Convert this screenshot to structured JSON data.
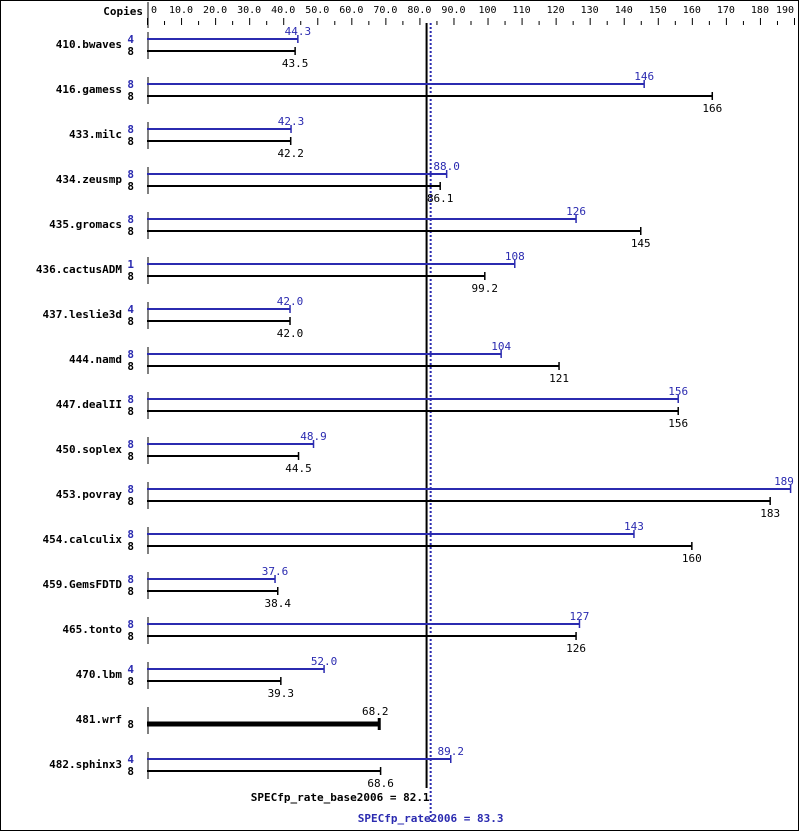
{
  "chart_data": {
    "type": "bar",
    "orientation": "horizontal",
    "axis_label": "Copies",
    "xlim": [
      0,
      190
    ],
    "ticks": [
      "0",
      "10.0",
      "20.0",
      "30.0",
      "40.0",
      "50.0",
      "60.0",
      "70.0",
      "80.0",
      "90.0",
      "100",
      "110",
      "120",
      "130",
      "140",
      "150",
      "160",
      "170",
      "180",
      "190"
    ],
    "tick_values": [
      0,
      10,
      20,
      30,
      40,
      50,
      60,
      70,
      80,
      90,
      100,
      110,
      120,
      130,
      140,
      150,
      160,
      170,
      180,
      190
    ],
    "colors": {
      "peak": "#2b2bb0",
      "base": "#000000"
    },
    "benchmarks": [
      {
        "name": "410.bwaves",
        "peak_copies": "4",
        "peak": 44.3,
        "peak_label": "44.3",
        "base_copies": "8",
        "base": 43.5,
        "base_label": "43.5"
      },
      {
        "name": "416.gamess",
        "peak_copies": "8",
        "peak": 146,
        "peak_label": "146",
        "base_copies": "8",
        "base": 166,
        "base_label": "166"
      },
      {
        "name": "433.milc",
        "peak_copies": "8",
        "peak": 42.3,
        "peak_label": "42.3",
        "base_copies": "8",
        "base": 42.2,
        "base_label": "42.2"
      },
      {
        "name": "434.zeusmp",
        "peak_copies": "8",
        "peak": 88.0,
        "peak_label": "88.0",
        "base_copies": "8",
        "base": 86.1,
        "base_label": "86.1"
      },
      {
        "name": "435.gromacs",
        "peak_copies": "8",
        "peak": 126,
        "peak_label": "126",
        "base_copies": "8",
        "base": 145,
        "base_label": "145"
      },
      {
        "name": "436.cactusADM",
        "peak_copies": "1",
        "peak": 108,
        "peak_label": "108",
        "base_copies": "8",
        "base": 99.2,
        "base_label": "99.2"
      },
      {
        "name": "437.leslie3d",
        "peak_copies": "4",
        "peak": 42.0,
        "peak_label": "42.0",
        "base_copies": "8",
        "base": 42.0,
        "base_label": "42.0"
      },
      {
        "name": "444.namd",
        "peak_copies": "8",
        "peak": 104,
        "peak_label": "104",
        "base_copies": "8",
        "base": 121,
        "base_label": "121"
      },
      {
        "name": "447.dealII",
        "peak_copies": "8",
        "peak": 156,
        "peak_label": "156",
        "base_copies": "8",
        "base": 156,
        "base_label": "156"
      },
      {
        "name": "450.soplex",
        "peak_copies": "8",
        "peak": 48.9,
        "peak_label": "48.9",
        "base_copies": "8",
        "base": 44.5,
        "base_label": "44.5"
      },
      {
        "name": "453.povray",
        "peak_copies": "8",
        "peak": 189,
        "peak_label": "189",
        "base_copies": "8",
        "base": 183,
        "base_label": "183"
      },
      {
        "name": "454.calculix",
        "peak_copies": "8",
        "peak": 143,
        "peak_label": "143",
        "base_copies": "8",
        "base": 160,
        "base_label": "160"
      },
      {
        "name": "459.GemsFDTD",
        "peak_copies": "8",
        "peak": 37.6,
        "peak_label": "37.6",
        "base_copies": "8",
        "base": 38.4,
        "base_label": "38.4"
      },
      {
        "name": "465.tonto",
        "peak_copies": "8",
        "peak": 127,
        "peak_label": "127",
        "base_copies": "8",
        "base": 126,
        "base_label": "126"
      },
      {
        "name": "470.lbm",
        "peak_copies": "4",
        "peak": 52.0,
        "peak_label": "52.0",
        "base_copies": "8",
        "base": 39.3,
        "base_label": "39.3"
      },
      {
        "name": "481.wrf",
        "peak_copies": null,
        "peak": null,
        "peak_label": null,
        "base_copies": "8",
        "base": 68.2,
        "base_label": "68.2"
      },
      {
        "name": "482.sphinx3",
        "peak_copies": "4",
        "peak": 89.2,
        "peak_label": "89.2",
        "base_copies": "8",
        "base": 68.6,
        "base_label": "68.6"
      }
    ],
    "base_mean": {
      "value": 82.1,
      "label": "SPECfp_rate_base2006 = 82.1"
    },
    "peak_mean": {
      "value": 83.3,
      "label": "SPECfp_rate2006 = 83.3"
    }
  }
}
